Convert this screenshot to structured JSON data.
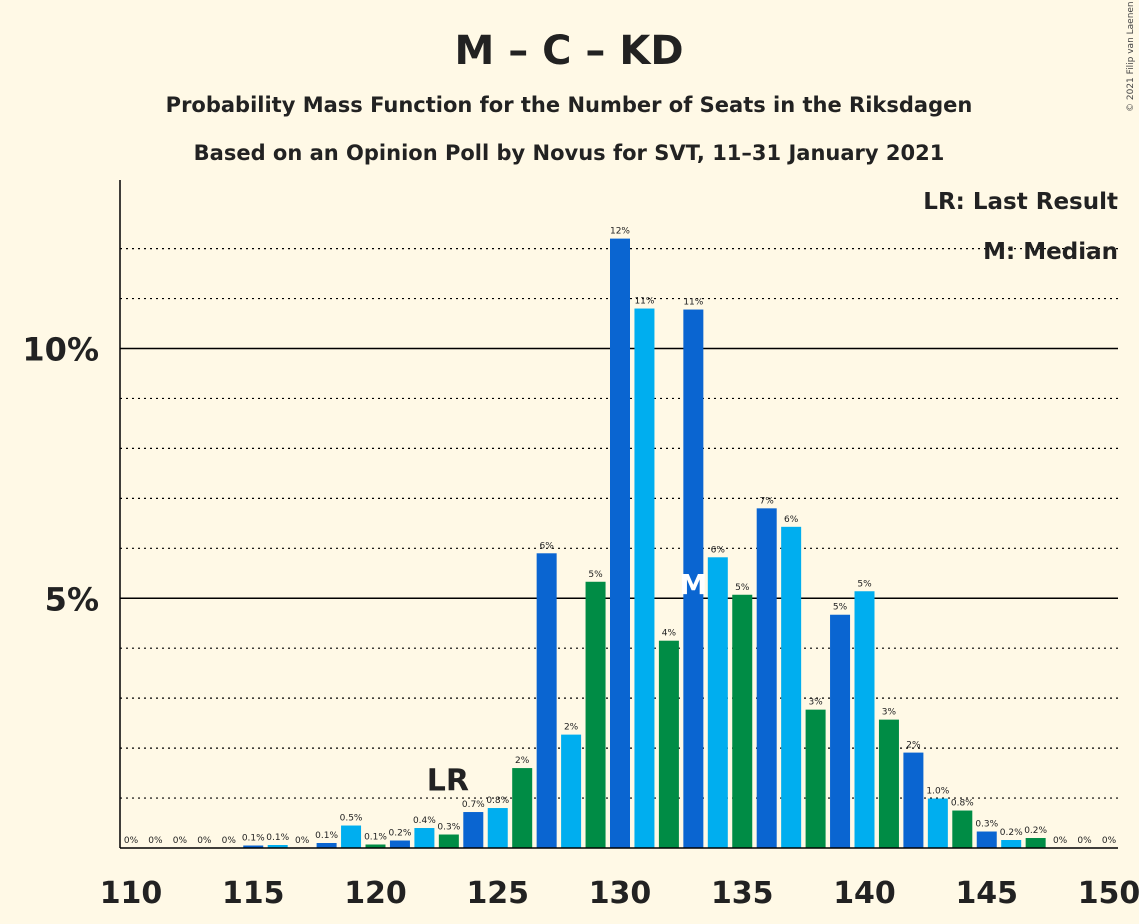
{
  "chart_data": {
    "type": "bar",
    "title": "M – C – KD",
    "subtitle": "Probability Mass Function for the Number of Seats in the Riksdagen",
    "subtitle2": "Based on an Opinion Poll by Novus for SVT, 11–31 January 2021",
    "copyright": "© 2021 Filip van Laenen",
    "legend": {
      "last_result": "LR: Last Result",
      "median": "M: Median",
      "placement": "top-right"
    },
    "markers": {
      "last_result": {
        "label": "LR",
        "x": 123
      },
      "median": {
        "label": "M",
        "x": 133
      }
    },
    "xlim": [
      110,
      150
    ],
    "ylim": [
      0,
      13.3
    ],
    "x_ticks": [
      110,
      115,
      120,
      125,
      130,
      135,
      140,
      145,
      150
    ],
    "y_ticks": [
      {
        "value": 5,
        "label": "5%"
      },
      {
        "value": 10,
        "label": "10%"
      }
    ],
    "grid": true,
    "bar_colors": [
      "#00AEEF",
      "#008C45",
      "#0A65D1"
    ],
    "x": [
      110,
      111,
      112,
      113,
      114,
      115,
      116,
      117,
      118,
      119,
      120,
      121,
      122,
      123,
      124,
      125,
      126,
      127,
      128,
      129,
      130,
      131,
      132,
      133,
      134,
      135,
      136,
      137,
      138,
      139,
      140,
      141,
      142,
      143,
      144,
      145,
      146,
      147,
      148,
      149,
      150
    ],
    "values": [
      0,
      0,
      0,
      0,
      0,
      0.05,
      0.06,
      0,
      0.1,
      0.45,
      0.07,
      0.15,
      0.4,
      0.27,
      0.72,
      0.8,
      1.6,
      5.9,
      2.27,
      5.33,
      12.2,
      10.8,
      4.15,
      10.78,
      5.82,
      5.07,
      6.8,
      6.43,
      2.77,
      4.67,
      5.14,
      2.57,
      1.91,
      0.99,
      0.75,
      0.33,
      0.16,
      0.2,
      0,
      0,
      0
    ],
    "labels": [
      "0%",
      "0%",
      "0%",
      "0%",
      "0%",
      "0.1%",
      "0.1%",
      "0%",
      "0.1%",
      "0.5%",
      "0.1%",
      "0.2%",
      "0.4%",
      "0.3%",
      "0.7%",
      "0.8%",
      "2%",
      "6%",
      "2%",
      "5%",
      "12%",
      "11%",
      "4%",
      "11%",
      "6%",
      "5%",
      "7%",
      "6%",
      "3%",
      "5%",
      "5%",
      "3%",
      "2%",
      "1.0%",
      "0.8%",
      "0.3%",
      "0.2%",
      "0.2%",
      "0%",
      "0%",
      "0%"
    ]
  }
}
